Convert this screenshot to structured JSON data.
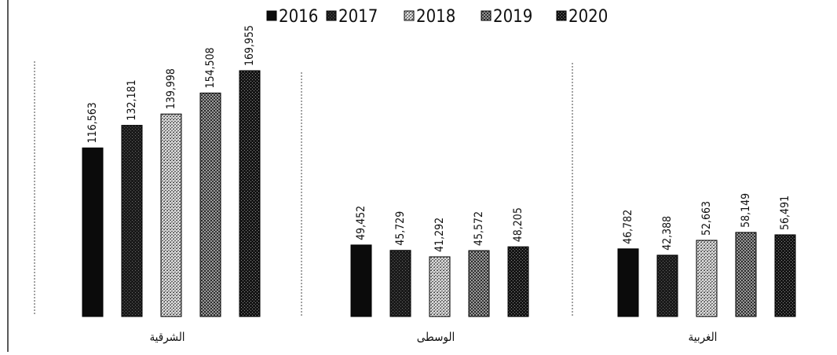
{
  "chart_data": {
    "type": "bar",
    "categories": [
      "الشرقية",
      "الوسطى",
      "الغربية"
    ],
    "series": [
      {
        "name": "2016",
        "values": [
          116563,
          49452,
          46782
        ]
      },
      {
        "name": "2017",
        "values": [
          132181,
          45729,
          42388
        ]
      },
      {
        "name": "2018",
        "values": [
          139998,
          41292,
          52663
        ]
      },
      {
        "name": "2019",
        "values": [
          154508,
          45572,
          58149
        ]
      },
      {
        "name": "2020",
        "values": [
          169955,
          48205,
          56491
        ]
      }
    ],
    "value_labels": [
      [
        "116,563",
        "132,181",
        "139,998",
        "154,508",
        "169,955"
      ],
      [
        "49,452",
        "45,729",
        "41,292",
        "45,572",
        "48,205"
      ],
      [
        "46,782",
        "42,388",
        "52,663",
        "58,149",
        "56,491"
      ]
    ],
    "legend_position": "top",
    "grid": false,
    "ylim": [
      0,
      180000
    ]
  }
}
